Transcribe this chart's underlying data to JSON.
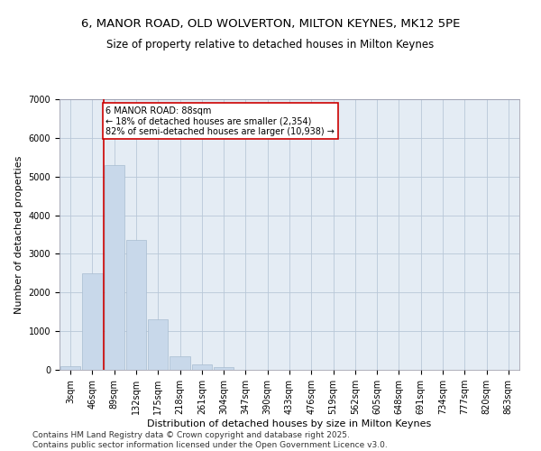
{
  "title1": "6, MANOR ROAD, OLD WOLVERTON, MILTON KEYNES, MK12 5PE",
  "title2": "Size of property relative to detached houses in Milton Keynes",
  "xlabel": "Distribution of detached houses by size in Milton Keynes",
  "ylabel": "Number of detached properties",
  "bar_color": "#c8d8ea",
  "bar_edge_color": "#a8bcd0",
  "background_color": "#ffffff",
  "plot_bg_color": "#e4ecf4",
  "grid_color": "#b8c8d8",
  "categories": [
    "3sqm",
    "46sqm",
    "89sqm",
    "132sqm",
    "175sqm",
    "218sqm",
    "261sqm",
    "304sqm",
    "347sqm",
    "390sqm",
    "433sqm",
    "476sqm",
    "519sqm",
    "562sqm",
    "605sqm",
    "648sqm",
    "691sqm",
    "734sqm",
    "777sqm",
    "820sqm",
    "863sqm"
  ],
  "values": [
    100,
    2500,
    5300,
    3350,
    1300,
    350,
    130,
    60,
    0,
    0,
    0,
    0,
    0,
    0,
    0,
    0,
    0,
    0,
    0,
    0,
    0
  ],
  "ylim": [
    0,
    7000
  ],
  "yticks": [
    0,
    1000,
    2000,
    3000,
    4000,
    5000,
    6000,
    7000
  ],
  "annotation_text": "6 MANOR ROAD: 88sqm\n← 18% of detached houses are smaller (2,354)\n82% of semi-detached houses are larger (10,938) →",
  "annotation_box_color": "#ffffff",
  "annotation_edge_color": "#cc0000",
  "vline_color": "#cc0000",
  "footer_text": "Contains HM Land Registry data © Crown copyright and database right 2025.\nContains public sector information licensed under the Open Government Licence v3.0.",
  "title_fontsize": 9.5,
  "subtitle_fontsize": 8.5,
  "axis_label_fontsize": 8,
  "tick_fontsize": 7,
  "annotation_fontsize": 7,
  "footer_fontsize": 6.5
}
